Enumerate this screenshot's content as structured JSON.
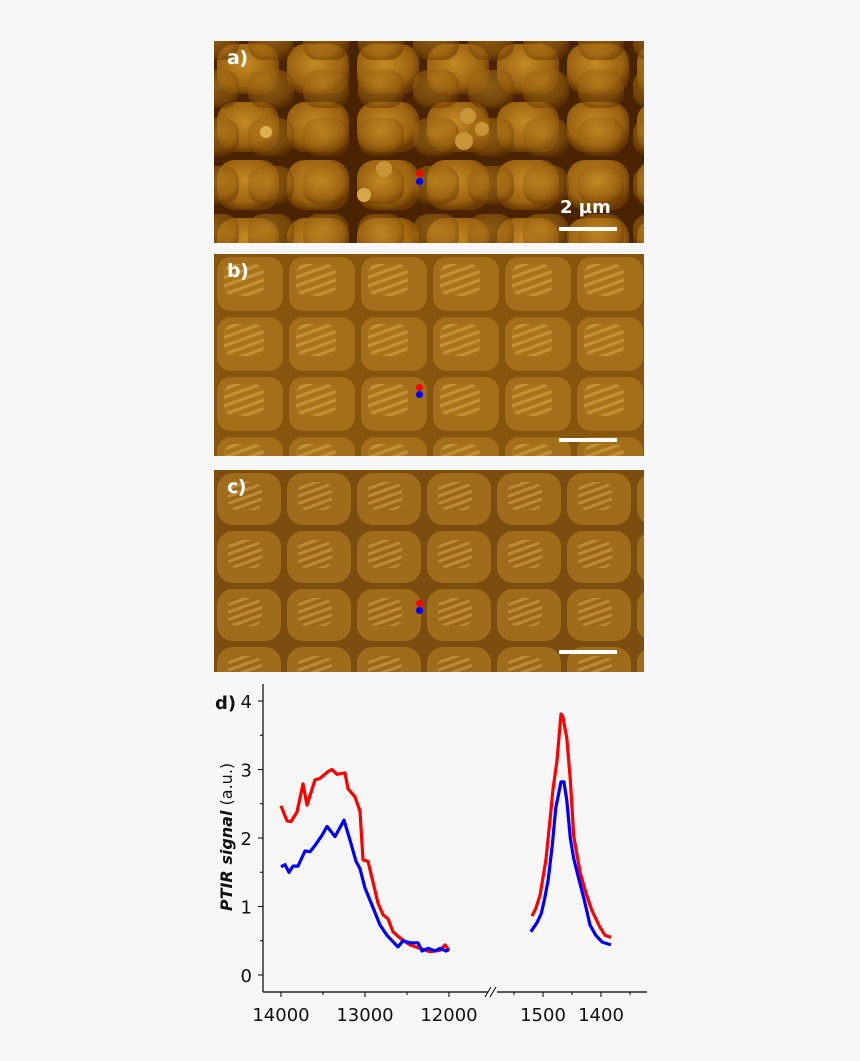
{
  "figure": {
    "panels": [
      {
        "id": "a",
        "label": "a)",
        "scale_bar_text": "2 µm",
        "scale_bar_length": "2 µm",
        "markers": [
          {
            "color": "#ff0000"
          },
          {
            "color": "#0000ff"
          }
        ]
      },
      {
        "id": "b",
        "label": "b)",
        "scale_bar_text": "",
        "markers": [
          {
            "color": "#ff0000"
          },
          {
            "color": "#0000ff"
          }
        ]
      },
      {
        "id": "c",
        "label": "c)",
        "scale_bar_text": "",
        "markers": [
          {
            "color": "#ff0000"
          },
          {
            "color": "#0000ff"
          }
        ]
      }
    ],
    "chart_panel_label": "d)"
  },
  "colors": {
    "red_series": "#ff0000",
    "blue_series": "#0000ff",
    "afm_dark": "#5a2c00",
    "afm_mid": "#9a6210",
    "afm_light": "#d9a640",
    "background": "#f7f7f7"
  },
  "chart_data": {
    "type": "line",
    "title": "",
    "panel_label": "d)",
    "ylabel": "PTIR signal (a.u.)",
    "ylabel_parts": {
      "italic_bold": "PTIR signal",
      "normal": " (a.u.)"
    },
    "xlabel": "",
    "ylim": [
      -0.2,
      4.2
    ],
    "yticks": [
      0,
      1,
      2,
      3,
      4
    ],
    "y_minor_ticks": [
      0.5,
      1.5,
      2.5,
      3.5
    ],
    "x_axis_broken": true,
    "x_segments": [
      {
        "range": [
          14000,
          12000
        ],
        "reversed": true,
        "ticks": [
          14000,
          13000,
          12000
        ],
        "minor_ticks": [
          13500,
          12500
        ]
      },
      {
        "range": [
          1520,
          1350
        ],
        "reversed": true,
        "ticks": [
          1500,
          1400
        ],
        "minor_ticks": [
          1550,
          1450,
          1350
        ]
      }
    ],
    "grid": false,
    "legend": null,
    "series": [
      {
        "name": "red",
        "color": "#ff0000",
        "segment_1": {
          "x": [
            14000,
            13929,
            13881,
            13810,
            13738,
            13690,
            13595,
            13536,
            13440,
            13393,
            13333,
            13238,
            13202,
            13119,
            13060,
            13024,
            12964,
            12845,
            12786,
            12726,
            12667,
            12583,
            12464,
            12345,
            12226,
            12107,
            12048,
            12000
          ],
          "y": [
            2.47,
            2.25,
            2.24,
            2.38,
            2.79,
            2.48,
            2.85,
            2.87,
            2.97,
            3.0,
            2.93,
            2.95,
            2.72,
            2.6,
            2.39,
            1.68,
            1.66,
            1.05,
            0.88,
            0.82,
            0.63,
            0.54,
            0.44,
            0.39,
            0.34,
            0.36,
            0.44,
            0.36
          ]
        },
        "segment_2": {
          "x": [
            1519,
            1512,
            1505,
            1495,
            1488,
            1483,
            1476,
            1469,
            1466,
            1459,
            1453,
            1447,
            1436,
            1426,
            1416,
            1402,
            1393,
            1383
          ],
          "y": [
            0.86,
            0.98,
            1.17,
            1.68,
            2.26,
            2.7,
            3.12,
            3.81,
            3.78,
            3.46,
            2.85,
            2.03,
            1.5,
            1.2,
            0.95,
            0.7,
            0.58,
            0.55
          ]
        }
      },
      {
        "name": "blue",
        "color": "#0000ff",
        "segment_1": {
          "x": [
            14000,
            13952,
            13905,
            13857,
            13798,
            13714,
            13655,
            13595,
            13512,
            13452,
            13357,
            13250,
            13179,
            13107,
            13060,
            13000,
            12917,
            12821,
            12738,
            12655,
            12607,
            12548,
            12464,
            12369,
            12321,
            12250,
            12167,
            12107,
            12036,
            12000
          ],
          "y": [
            1.58,
            1.61,
            1.5,
            1.59,
            1.59,
            1.81,
            1.8,
            1.89,
            2.04,
            2.17,
            2.02,
            2.26,
            1.97,
            1.66,
            1.55,
            1.27,
            1.02,
            0.73,
            0.58,
            0.47,
            0.41,
            0.5,
            0.47,
            0.47,
            0.35,
            0.39,
            0.35,
            0.39,
            0.35,
            0.37
          ]
        },
        "segment_2": {
          "x": [
            1521,
            1510,
            1503,
            1497,
            1491,
            1484,
            1478,
            1469,
            1464,
            1459,
            1453,
            1447,
            1438,
            1429,
            1419,
            1409,
            1398,
            1383
          ],
          "y": [
            0.63,
            0.77,
            0.9,
            1.12,
            1.39,
            1.9,
            2.44,
            2.82,
            2.82,
            2.55,
            2.0,
            1.7,
            1.39,
            1.1,
            0.73,
            0.58,
            0.48,
            0.44
          ]
        }
      }
    ]
  }
}
